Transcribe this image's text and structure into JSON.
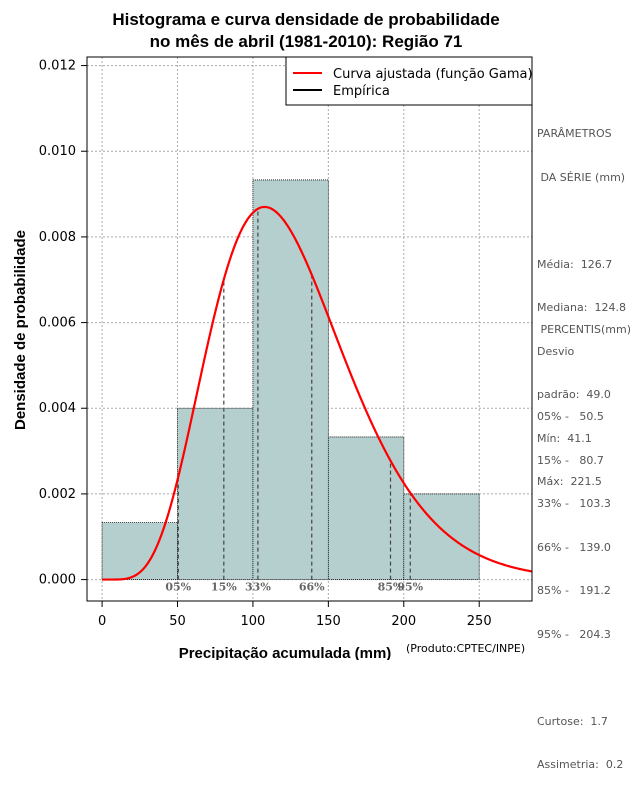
{
  "chart_data": {
    "type": "bar",
    "title_lines": [
      "Histograma e curva densidade de probabilidade",
      "no mês de abril (1981-2010): Região 71"
    ],
    "xlabel": "Precipitação acumulada (mm)",
    "ylabel": "Densidade de probabilidade",
    "credit": "(Produto:CPTEC/INPE)",
    "xlim": [
      -10,
      285
    ],
    "ylim": [
      -0.0005,
      0.0122
    ],
    "x_ticks": [
      0,
      50,
      100,
      150,
      200,
      250
    ],
    "y_ticks": [
      0.0,
      0.002,
      0.004,
      0.006,
      0.008,
      0.01,
      0.012
    ],
    "y_tick_labels": [
      "0.000",
      "0.002",
      "0.004",
      "0.006",
      "0.008",
      "0.010",
      "0.012"
    ],
    "grid": true,
    "histogram": {
      "bins": [
        {
          "x0": 0,
          "x1": 50,
          "density": 0.00133
        },
        {
          "x0": 50,
          "x1": 100,
          "density": 0.004
        },
        {
          "x0": 100,
          "x1": 150,
          "density": 0.00933
        },
        {
          "x0": 150,
          "x1": 200,
          "density": 0.00333
        },
        {
          "x0": 200,
          "x1": 250,
          "density": 0.002
        }
      ],
      "fill": "#b4cfcd",
      "edge": "#000000"
    },
    "gamma_fit": {
      "mean": 126.7,
      "sd": 49.0,
      "color": "#ff0000",
      "peak_density": 0.0087
    },
    "percentile_lines": [
      {
        "label": "05%",
        "x": 50.5
      },
      {
        "label": "15%",
        "x": 80.7
      },
      {
        "label": "33%",
        "x": 103.3
      },
      {
        "label": "66%",
        "x": 139.0
      },
      {
        "label": "85%",
        "x": 191.2
      },
      {
        "label": "95%",
        "x": 204.3
      }
    ],
    "legend": {
      "position": "top-right",
      "entries": [
        {
          "label": "Curva ajustada (função Gama)",
          "color": "#ff0000"
        },
        {
          "label": "Empírica",
          "color": "#000000"
        }
      ]
    }
  },
  "side_panel": {
    "parametros_title": [
      "PARÂMETROS",
      " DA SÉRIE (mm)"
    ],
    "parametros": [
      "Média:  126.7",
      "Mediana:  124.8",
      "Desvio",
      "padrão:  49.0",
      "Mín:  41.1",
      "Máx:  221.5"
    ],
    "percentis_title": " PERCENTIS(mm)",
    "percentis": [
      "05% -   50.5",
      "15% -   80.7",
      "33% -   103.3",
      "66% -   139.0",
      "85% -   191.2",
      "95% -   204.3"
    ],
    "extras": [
      "Curtose:  1.7",
      "Assimetria:  0.2"
    ]
  }
}
